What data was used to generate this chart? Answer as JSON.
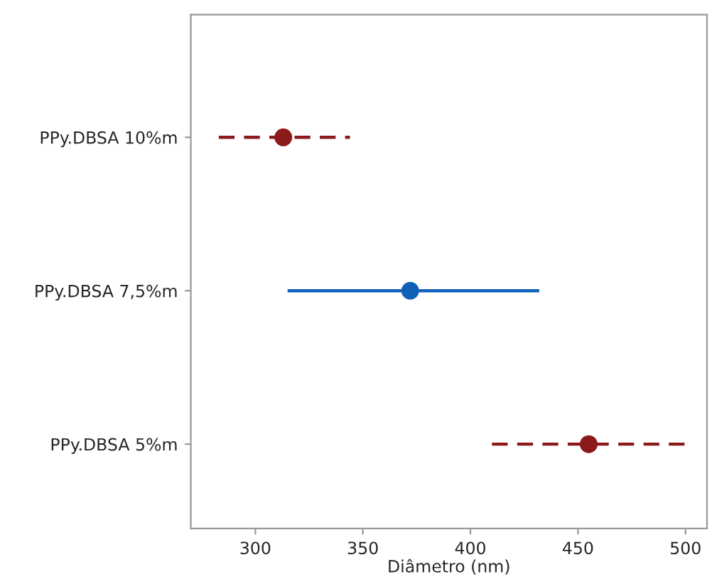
{
  "chart_data": {
    "type": "scatter",
    "orientation": "horizontal",
    "xlabel": "Diâmetro (nm)",
    "categories": [
      "PPy.DBSA 10%m",
      "PPy.DBSA 7,5%m",
      "PPy.DBSA 5%m"
    ],
    "series": [
      {
        "color": "#8b1a1a",
        "line_style": "dashed",
        "values": [
          313,
          null,
          null
        ],
        "errors": [
          [
            283,
            344
          ],
          null,
          null
        ]
      },
      {
        "color": "#1060b8",
        "line_style": "solid",
        "values": [
          null,
          372,
          null
        ],
        "errors": [
          null,
          [
            315,
            432
          ],
          null
        ]
      },
      {
        "color": "#8b1a1a",
        "line_style": "dashed",
        "values": [
          null,
          null,
          455
        ],
        "errors": [
          null,
          null,
          [
            410,
            501
          ]
        ]
      }
    ],
    "xlim": [
      270,
      510
    ],
    "xticks": [
      300,
      350,
      400,
      450,
      500
    ],
    "marker": "circle",
    "grid": false,
    "legend": false
  }
}
